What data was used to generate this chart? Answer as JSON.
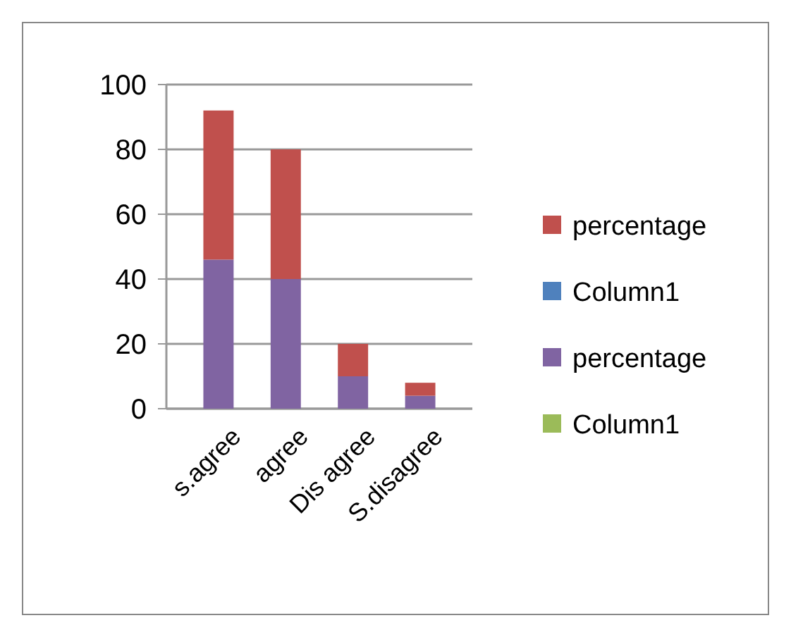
{
  "chart_data": {
    "type": "bar",
    "stacked": true,
    "categories": [
      "s.agree",
      "agree",
      "Dis agree",
      "S.disagree"
    ],
    "series": [
      {
        "name": "Column1",
        "color": "#9bbb59",
        "values": [
          0,
          0,
          0,
          0
        ]
      },
      {
        "name": "percentage",
        "color": "#8064a2",
        "values": [
          46,
          40,
          10,
          4
        ]
      },
      {
        "name": "Column1",
        "color": "#4f81bd",
        "values": [
          0,
          0,
          0,
          0
        ]
      },
      {
        "name": "percentage",
        "color": "#c0504d",
        "values": [
          46,
          40,
          10,
          4
        ]
      }
    ],
    "ylim": [
      0,
      100
    ],
    "yticks": [
      0,
      20,
      40,
      60,
      80,
      100
    ],
    "grid": "y",
    "legend": "right"
  }
}
